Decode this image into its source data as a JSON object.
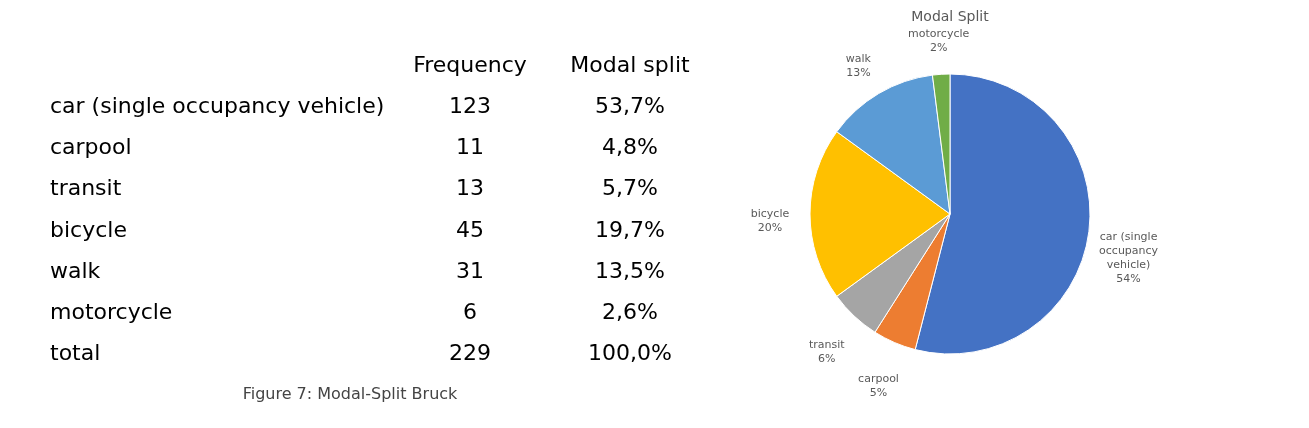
{
  "chart_data": [
    {
      "type": "other",
      "categories": [
        "car (single occupancy vehicle)",
        "carpool",
        "transit",
        "bicycle",
        "walk",
        "motorcycle",
        "total"
      ],
      "series": [
        {
          "name": "Frequency",
          "values": [
            123,
            11,
            13,
            45,
            31,
            6,
            229
          ],
          "value_labels": [
            "123",
            "11",
            "13",
            "45",
            "31",
            "6",
            "229"
          ]
        },
        {
          "name": "Modal split",
          "values": [
            53.7,
            4.8,
            5.7,
            19.7,
            13.5,
            2.6,
            100.0
          ],
          "value_labels": [
            "53,7%",
            "4,8%",
            "5,7%",
            "19,7%",
            "13,5%",
            "2,6%",
            "100,0%"
          ]
        }
      ],
      "annotations": [
        "Figure 7: Modal-Split Bruck"
      ]
    },
    {
      "type": "pie",
      "title": "Modal Split",
      "categories": [
        "car (single occupancy vehicle)",
        "carpool",
        "transit",
        "bicycle",
        "walk",
        "motorcycle"
      ],
      "values": [
        54,
        5,
        6,
        20,
        13,
        2
      ],
      "colors": [
        "#4472c4",
        "#ed7d31",
        "#a5a5a5",
        "#ffc000",
        "#5b9bd5",
        "#70ad47"
      ],
      "value_labels": [
        "54%",
        "5%",
        "6%",
        "20%",
        "13%",
        "2%"
      ],
      "legend": false
    }
  ]
}
